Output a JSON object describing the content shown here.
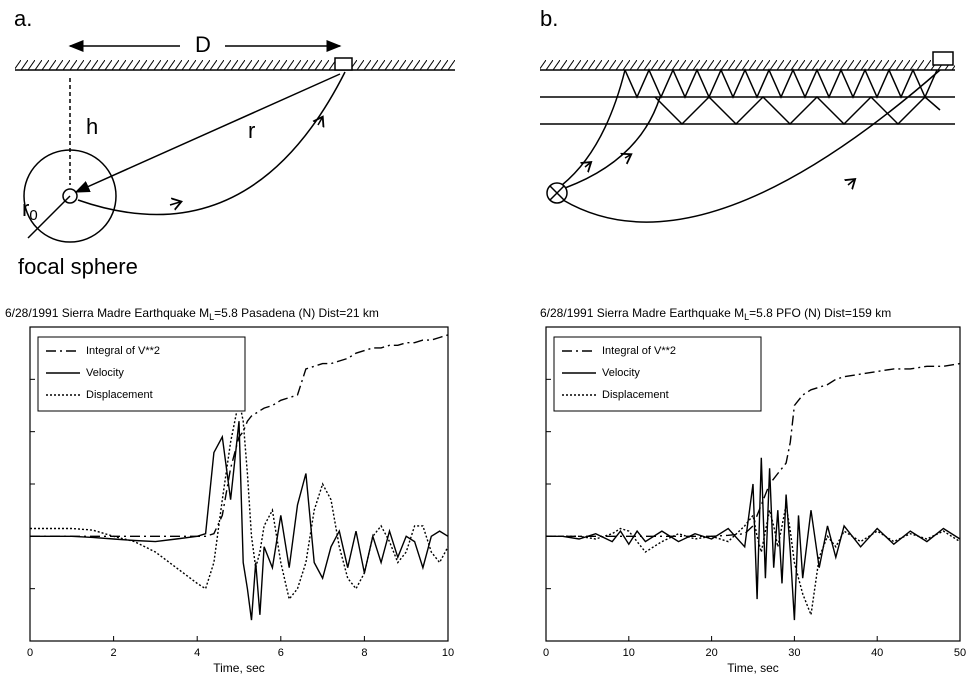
{
  "diagrams": {
    "a": {
      "label": "a.",
      "distance": "D",
      "depth": "h",
      "radius": "r",
      "source_radius": [
        "r",
        "0"
      ],
      "caption": "focal sphere"
    },
    "b": {
      "label": "b."
    }
  },
  "chart_data": [
    {
      "type": "line",
      "title": [
        "6/28/1991 Sierra Madre Earthquake M",
        "L",
        "=5.8  Pasadena (N)  Dist=21 km"
      ],
      "x_label": "Time, sec",
      "x": [
        0,
        0.5,
        1,
        1.5,
        2,
        2.5,
        3,
        3.5,
        4,
        4.2,
        4.4,
        4.6,
        4.8,
        5.0,
        5.1,
        5.2,
        5.3,
        5.4,
        5.5,
        5.6,
        5.8,
        6.0,
        6.2,
        6.4,
        6.6,
        6.8,
        7.0,
        7.2,
        7.4,
        7.6,
        7.8,
        8.0,
        8.2,
        8.4,
        8.6,
        8.8,
        9.0,
        9.2,
        9.4,
        9.6,
        9.8,
        10
      ],
      "series": [
        {
          "name": "Integral  of  V**2",
          "color": "#000000",
          "style": "dash-dot",
          "values": [
            -1,
            -1,
            -1,
            -1,
            -1,
            -1,
            -1,
            -1,
            -1,
            -1,
            -0.95,
            -0.6,
            0.3,
            0.9,
            1.0,
            1.2,
            1.3,
            1.35,
            1.4,
            1.45,
            1.5,
            1.6,
            1.65,
            1.7,
            2.2,
            2.25,
            2.3,
            2.3,
            2.35,
            2.4,
            2.5,
            2.55,
            2.6,
            2.6,
            2.65,
            2.65,
            2.7,
            2.7,
            2.75,
            2.75,
            2.8,
            2.85
          ]
        },
        {
          "name": "Velocity",
          "color": "#000000",
          "style": "solid",
          "values": [
            -1,
            -1,
            -1,
            -1.02,
            -1.05,
            -1.08,
            -1.1,
            -1.05,
            -1.0,
            -0.95,
            0.6,
            0.9,
            -0.3,
            1.2,
            -1.5,
            -2.0,
            -2.6,
            -1.5,
            -2.5,
            -1.2,
            -1.6,
            -0.6,
            -1.6,
            -0.4,
            0.2,
            -1.5,
            -1.8,
            -1.2,
            -0.9,
            -1.6,
            -0.9,
            -1.7,
            -1.0,
            -1.5,
            -0.9,
            -1.4,
            -1.0,
            -1.1,
            -1.6,
            -1.0,
            -0.9,
            -1.0
          ]
        },
        {
          "name": "Displacement",
          "color": "#000000",
          "style": "dotted",
          "values": [
            -0.85,
            -0.85,
            -0.85,
            -0.88,
            -1.0,
            -1.1,
            -1.3,
            -1.6,
            -1.9,
            -2.0,
            -1.5,
            -0.3,
            0.8,
            1.6,
            1.2,
            0.2,
            -1.0,
            -1.6,
            -1.3,
            -0.8,
            -0.5,
            -1.5,
            -2.2,
            -2.0,
            -1.5,
            -0.5,
            0.0,
            -0.3,
            -1.2,
            -1.8,
            -2.0,
            -1.7,
            -1.0,
            -0.8,
            -1.1,
            -1.5,
            -1.3,
            -0.8,
            -0.8,
            -1.3,
            -1.5,
            -1.2
          ]
        }
      ],
      "xlim": [
        0,
        10
      ],
      "xticks": [
        0,
        2,
        4,
        6,
        8,
        10
      ],
      "ylim": [
        -3,
        3
      ],
      "yticks": [
        -2,
        -1,
        0,
        1,
        2
      ],
      "legend": "upper-left"
    },
    {
      "type": "line",
      "title": [
        "6/28/1991  Sierra Madre Earthquake M",
        "L",
        "=5.8 PFO (N)  Dist=159 km"
      ],
      "x_label": "Time, sec",
      "x": [
        0,
        2,
        4,
        6,
        8,
        9,
        10,
        11,
        12,
        14,
        16,
        18,
        20,
        22,
        24,
        25,
        25.5,
        26,
        26.5,
        27,
        27.5,
        28,
        28.5,
        29,
        29.5,
        30,
        30.5,
        31,
        32,
        33,
        34,
        35,
        36,
        38,
        40,
        42,
        44,
        46,
        48,
        50
      ],
      "series": [
        {
          "name": "Integral  of  V**2",
          "color": "#000000",
          "style": "dash-dot",
          "values": [
            -1,
            -1,
            -1,
            -1,
            -1,
            -1,
            -1,
            -1,
            -1,
            -1,
            -1,
            -1,
            -1,
            -0.98,
            -0.95,
            -0.8,
            -0.6,
            -0.4,
            -0.2,
            0.0,
            0.1,
            0.2,
            0.3,
            0.4,
            0.8,
            1.5,
            1.6,
            1.7,
            1.8,
            1.85,
            1.9,
            2.0,
            2.05,
            2.1,
            2.15,
            2.2,
            2.2,
            2.25,
            2.25,
            2.3
          ]
        },
        {
          "name": "Velocity",
          "color": "#000000",
          "style": "solid",
          "values": [
            -1,
            -1,
            -1.05,
            -0.95,
            -1.1,
            -0.9,
            -1.15,
            -0.9,
            -1.1,
            -0.9,
            -1.1,
            -0.95,
            -1.05,
            -0.85,
            -1.2,
            0.0,
            -2.2,
            0.5,
            -1.8,
            0.3,
            -1.6,
            -0.5,
            -1.9,
            -0.2,
            -1.3,
            -2.6,
            -0.6,
            -1.8,
            -0.5,
            -1.6,
            -0.8,
            -1.4,
            -0.8,
            -1.2,
            -0.85,
            -1.15,
            -0.9,
            -1.1,
            -0.85,
            -1.05
          ]
        },
        {
          "name": "Displacement",
          "color": "#000000",
          "style": "dotted",
          "values": [
            -1,
            -1,
            -1,
            -1.05,
            -0.95,
            -0.85,
            -0.9,
            -1.1,
            -1.3,
            -1.1,
            -0.95,
            -1.05,
            -1.0,
            -1.1,
            -0.8,
            -0.6,
            -1.0,
            -1.3,
            -0.9,
            -0.5,
            -0.8,
            -1.2,
            -0.8,
            -0.4,
            -0.9,
            -1.5,
            -1.8,
            -2.1,
            -2.5,
            -1.4,
            -1.0,
            -1.2,
            -0.9,
            -1.1,
            -0.9,
            -1.1,
            -0.95,
            -1.05,
            -0.9,
            -1.1
          ]
        }
      ],
      "xlim": [
        0,
        50
      ],
      "xticks": [
        0,
        10,
        20,
        30,
        40,
        50
      ],
      "ylim": [
        -3,
        3
      ],
      "yticks": [
        -2,
        -1,
        0,
        1,
        2
      ],
      "legend": "upper-left"
    }
  ]
}
